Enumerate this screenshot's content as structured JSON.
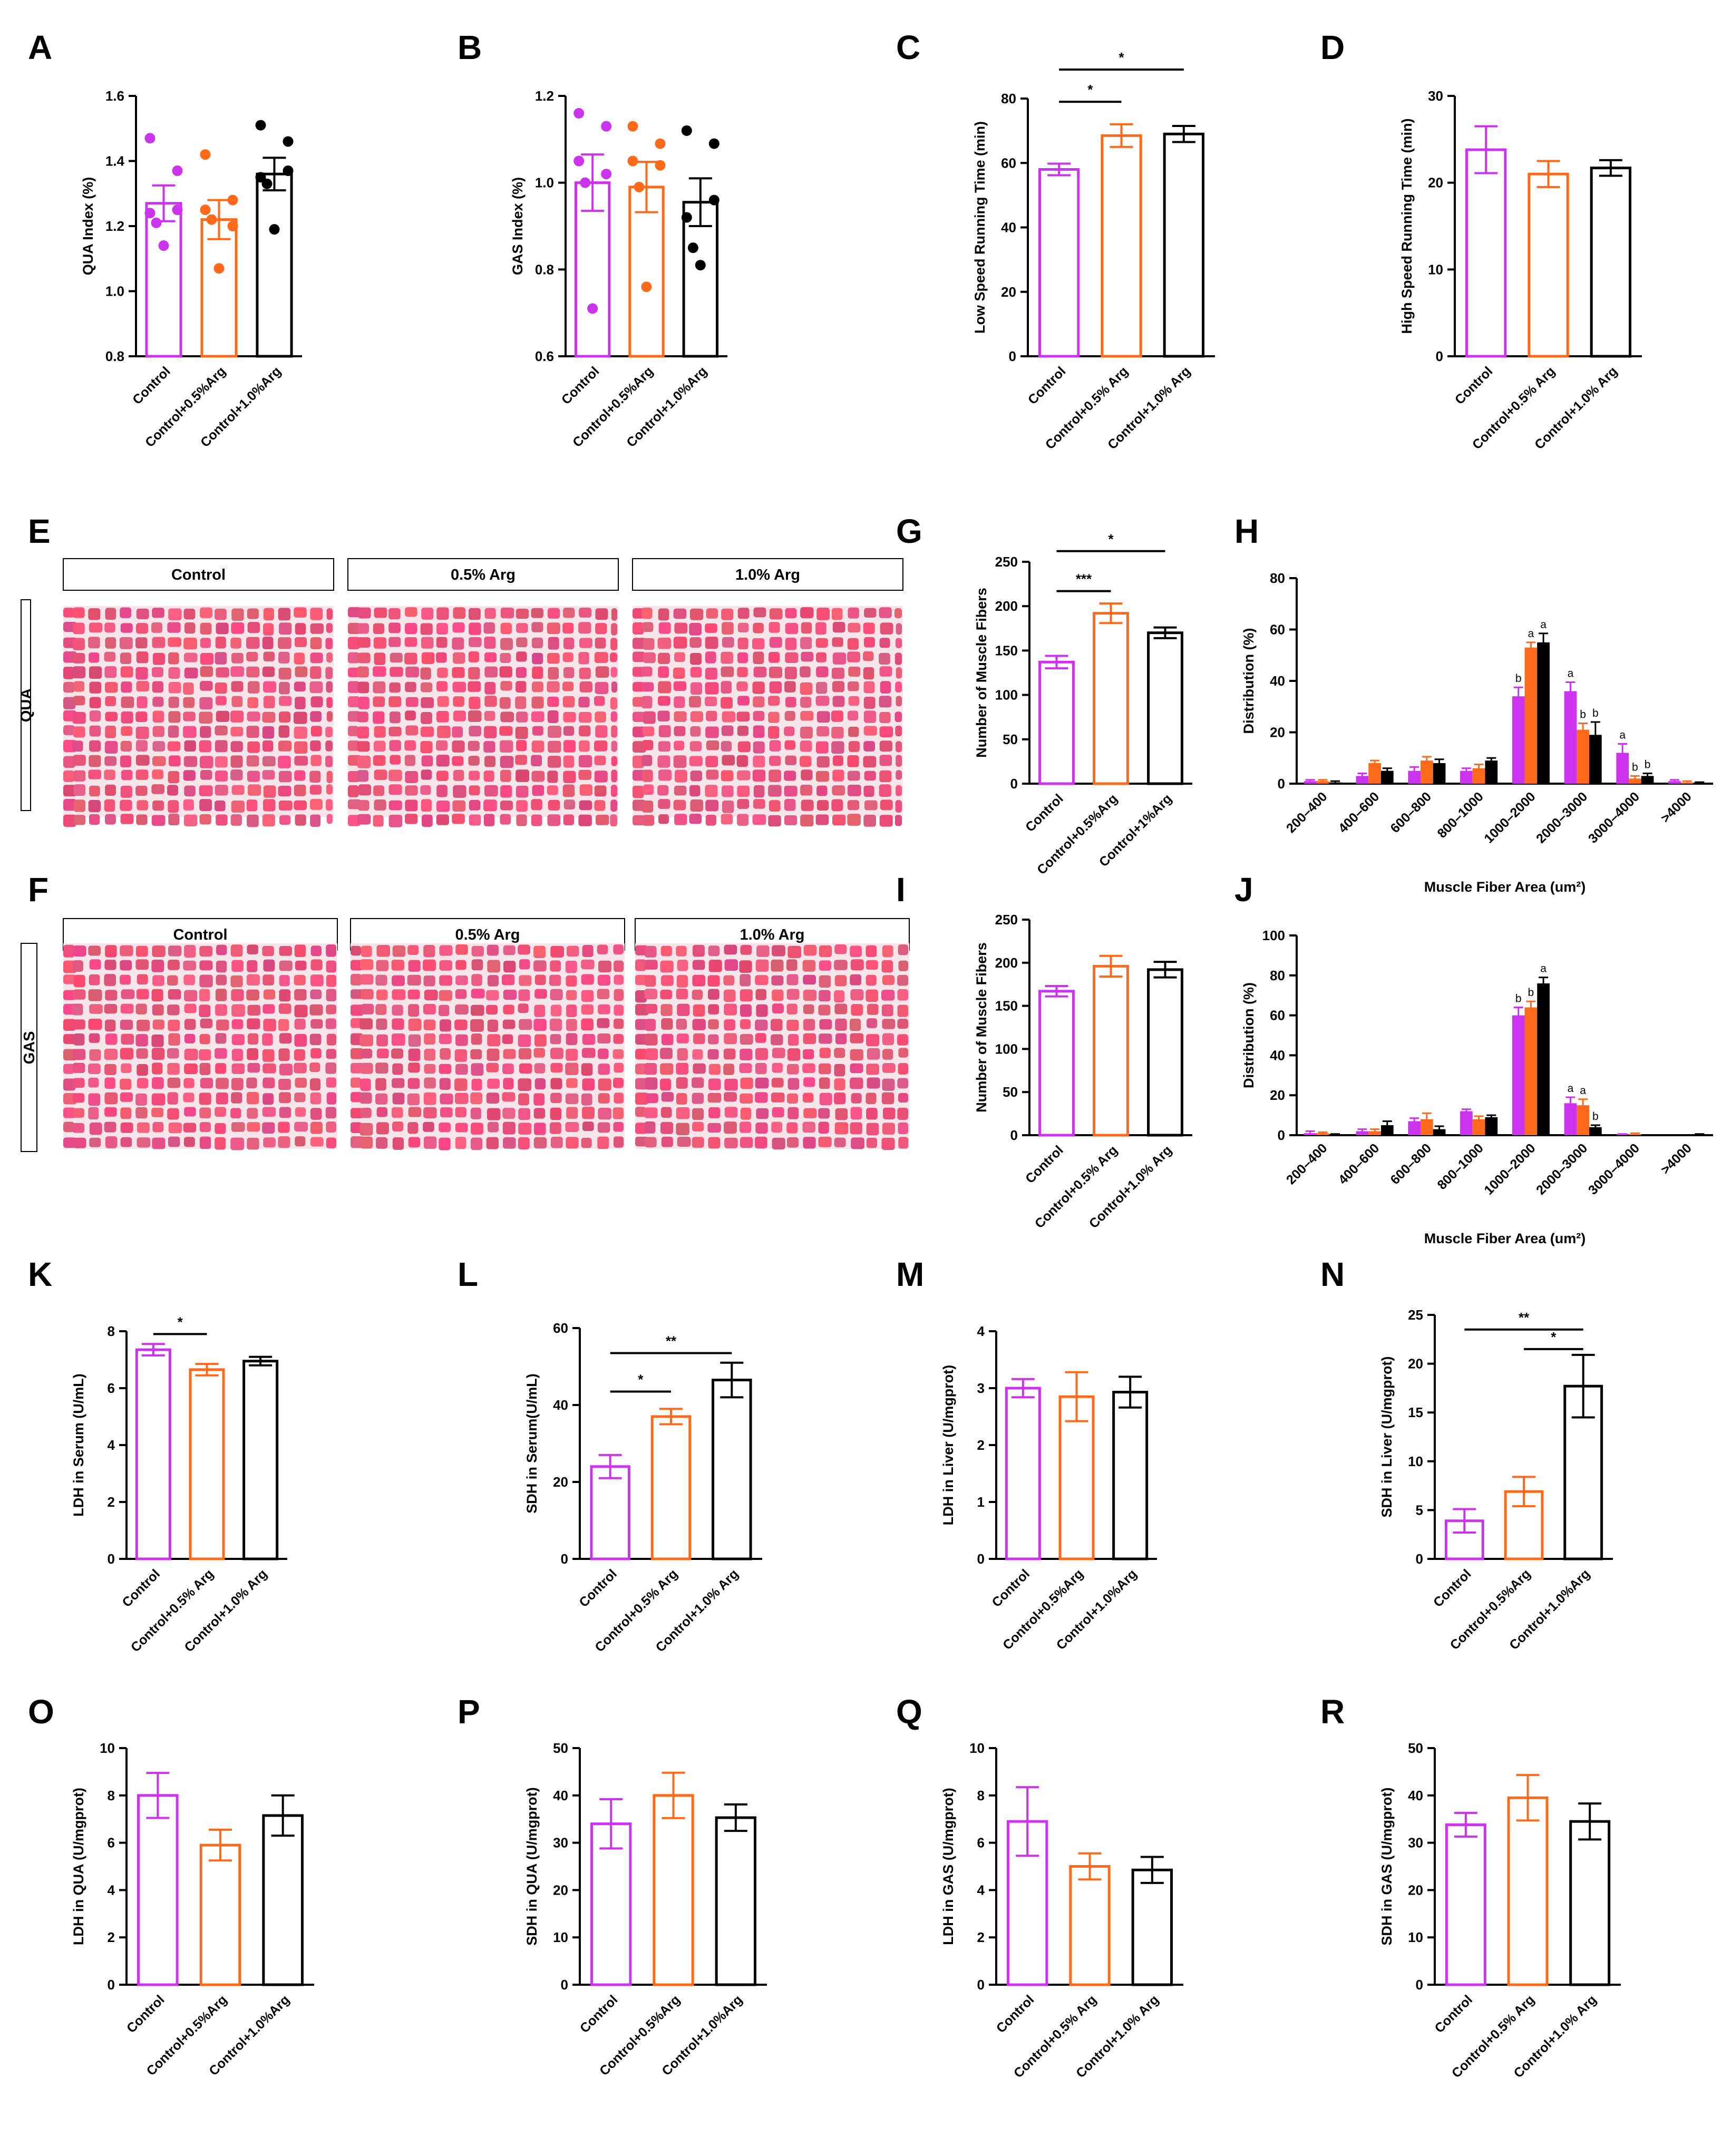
{
  "colors": {
    "control": "#cc33ee",
    "arg05": "#ff6a1a",
    "arg10": "#000000",
    "tissue": "#e04a78",
    "gap": "#f6e6ea"
  },
  "chart_data": [
    {
      "id": "A",
      "type": "bar",
      "panel": "A",
      "ylabel": "QUA Index (%)",
      "ylim": [
        0.8,
        1.6
      ],
      "yticks": [
        "0.8",
        "1.0",
        "1.2",
        "1.4",
        "1.6"
      ],
      "categories": [
        "Control",
        "Control+0.5%Arg",
        "Control+1.0%Arg"
      ],
      "values": [
        1.27,
        1.22,
        1.36
      ],
      "errors": [
        0.055,
        0.06,
        0.05
      ],
      "points": [
        [
          1.47,
          1.37,
          1.24,
          1.25,
          1.21,
          1.14
        ],
        [
          1.42,
          1.28,
          1.25,
          1.2,
          1.22,
          1.07
        ],
        [
          1.51,
          1.46,
          1.35,
          1.37,
          1.33,
          1.19
        ]
      ],
      "sig": []
    },
    {
      "id": "B",
      "type": "bar",
      "panel": "B",
      "ylabel": "GAS Index (%)",
      "ylim": [
        0.6,
        1.2
      ],
      "yticks": [
        "0.6",
        "0.8",
        "1.0",
        "1.2"
      ],
      "categories": [
        "Control",
        "Control+0.5%Arg",
        "Control+1.0%Arg"
      ],
      "values": [
        1.0,
        0.99,
        0.955
      ],
      "errors": [
        0.065,
        0.058,
        0.055
      ],
      "points": [
        [
          1.16,
          1.13,
          1.05,
          1.02,
          1.0,
          0.71
        ],
        [
          1.13,
          1.09,
          1.05,
          1.04,
          0.99,
          0.76
        ],
        [
          1.12,
          1.09,
          0.92,
          0.96,
          0.85,
          0.81
        ]
      ],
      "sig": []
    },
    {
      "id": "C",
      "type": "bar",
      "panel": "C",
      "ylabel": "Low Speed Running Time (min)",
      "ylim": [
        0,
        80
      ],
      "yticks": [
        "0",
        "20",
        "40",
        "60",
        "80"
      ],
      "categories": [
        "Control",
        "Control+0.5% Arg",
        "Control+1.0% Arg"
      ],
      "values": [
        58,
        68.5,
        69
      ],
      "errors": [
        1.8,
        3.5,
        2.5
      ],
      "sig": [
        {
          "from": 0,
          "to": 1,
          "label": "*",
          "y": 79
        },
        {
          "from": 0,
          "to": 2,
          "label": "*",
          "y": 89
        }
      ]
    },
    {
      "id": "D",
      "type": "bar",
      "panel": "D",
      "ylabel": "High Speed Running Time (min)",
      "ylim": [
        0,
        30
      ],
      "yticks": [
        "0",
        "10",
        "20",
        "30"
      ],
      "categories": [
        "Control",
        "Control+0.5% Arg",
        "Control+1.0% Arg"
      ],
      "values": [
        23.8,
        21,
        21.7
      ],
      "errors": [
        2.7,
        1.5,
        0.9
      ],
      "sig": []
    },
    {
      "id": "G",
      "type": "bar",
      "panel": "G",
      "ylabel": "Number of Muscle Fibers",
      "ylim": [
        0,
        250
      ],
      "yticks": [
        "0",
        "50",
        "100",
        "150",
        "200",
        "250"
      ],
      "categories": [
        "Control",
        "Control+0.5%Arg",
        "Control+1%Arg"
      ],
      "values": [
        137,
        192,
        170
      ],
      "errors": [
        7,
        11,
        6
      ],
      "sig": [
        {
          "from": 0,
          "to": 1,
          "label": "***",
          "y": 217
        },
        {
          "from": 0,
          "to": 2,
          "label": "*",
          "y": 262
        }
      ]
    },
    {
      "id": "H",
      "type": "bar",
      "panel": "H",
      "ylabel": "Distribution (%)",
      "xlabel": "Muscle Fiber Area (um²)",
      "ylim": [
        0,
        80
      ],
      "yticks": [
        "0",
        "20",
        "40",
        "60",
        "80"
      ],
      "categories": [
        "200–400",
        "400–600",
        "600–800",
        "800–1000",
        "1000–2000",
        "2000–3000",
        "3000–4000",
        ">4000"
      ],
      "series": [
        {
          "name": "Control",
          "values": [
            1,
            3,
            5,
            5,
            34,
            36,
            12,
            1
          ],
          "errors": [
            0.5,
            1,
            1.5,
            1,
            3.5,
            3.5,
            3.5,
            0.5
          ]
        },
        {
          "name": "0.5% Arg",
          "values": [
            1,
            8,
            9,
            6,
            53,
            21,
            2,
            0.5
          ],
          "errors": [
            0.5,
            1,
            1.5,
            1.5,
            2,
            2.5,
            1,
            0.5
          ]
        },
        {
          "name": "1.0% Arg",
          "values": [
            0.5,
            5,
            8,
            9,
            55,
            19,
            3,
            0.3
          ],
          "errors": [
            0.5,
            1,
            1.5,
            1,
            3.5,
            5,
            1,
            0.3
          ]
        }
      ],
      "letters": [
        {
          "cat": 4,
          "labels": [
            "b",
            "a",
            "a"
          ]
        },
        {
          "cat": 5,
          "labels": [
            "a",
            "b",
            "b"
          ]
        },
        {
          "cat": 6,
          "labels": [
            "a",
            "b",
            "b"
          ]
        }
      ]
    },
    {
      "id": "I",
      "type": "bar",
      "panel": "I",
      "ylabel": "Number of Muscle Fibers",
      "ylim": [
        0,
        250
      ],
      "yticks": [
        "0",
        "50",
        "100",
        "150",
        "200",
        "250"
      ],
      "categories": [
        "Control",
        "Control+0.5% Arg",
        "Control+1.0% Arg"
      ],
      "values": [
        167,
        196,
        192
      ],
      "errors": [
        6,
        12,
        9
      ],
      "sig": []
    },
    {
      "id": "J",
      "type": "bar",
      "panel": "J",
      "ylabel": "Distribution (%)",
      "xlabel": "Muscle Fiber Area (um²)",
      "ylim": [
        0,
        100
      ],
      "yticks": [
        "0",
        "20",
        "40",
        "60",
        "80",
        "100"
      ],
      "categories": [
        "200–400",
        "400–600",
        "600–800",
        "800–1000",
        "1000–2000",
        "2000–3000",
        "3000–4000",
        ">4000"
      ],
      "series": [
        {
          "name": "Control",
          "values": [
            1,
            2,
            7,
            12,
            60,
            16,
            0.3,
            0
          ],
          "errors": [
            1,
            1,
            1.5,
            1,
            4,
            3,
            0.3,
            0
          ]
        },
        {
          "name": "0.5% Arg",
          "values": [
            1,
            2,
            8,
            8,
            64,
            15,
            0.5,
            0
          ],
          "errors": [
            0.5,
            1,
            3,
            1.5,
            3,
            3,
            0.5,
            0
          ]
        },
        {
          "name": "1.0% Arg",
          "values": [
            0.3,
            5,
            3,
            9,
            76,
            4,
            0,
            0.3
          ],
          "errors": [
            0.3,
            2,
            1.5,
            1,
            3,
            1,
            0,
            0.3
          ]
        }
      ],
      "letters": [
        {
          "cat": 4,
          "labels": [
            "b",
            "b",
            "a"
          ]
        },
        {
          "cat": 5,
          "labels": [
            "a",
            "a",
            "b"
          ]
        }
      ]
    },
    {
      "id": "K",
      "type": "bar",
      "panel": "K",
      "ylabel": "LDH in Serum  (U/mL)",
      "ylim": [
        0,
        8
      ],
      "yticks": [
        "0",
        "2",
        "4",
        "6",
        "8"
      ],
      "categories": [
        "Control",
        "Control+0.5% Arg",
        "Control+1.0% Arg"
      ],
      "values": [
        7.35,
        6.65,
        6.95
      ],
      "errors": [
        0.2,
        0.2,
        0.15
      ],
      "sig": [
        {
          "from": 0,
          "to": 1,
          "label": "*",
          "y": 7.9
        }
      ]
    },
    {
      "id": "L",
      "type": "bar",
      "panel": "L",
      "ylabel": "SDH in Serum(U/mL)",
      "ylim": [
        0,
        60
      ],
      "yticks": [
        "0",
        "20",
        "40",
        "60"
      ],
      "categories": [
        "Control",
        "Control+0.5% Arg",
        "Control+1.0% Arg"
      ],
      "values": [
        24,
        37,
        46.5
      ],
      "errors": [
        3,
        2,
        4.5
      ],
      "sig": [
        {
          "from": 0,
          "to": 1,
          "label": "*",
          "y": 43.5
        },
        {
          "from": 0,
          "to": 2,
          "label": "**",
          "y": 53.5
        }
      ]
    },
    {
      "id": "M",
      "type": "bar",
      "panel": "M",
      "ylabel": "LDH in Liver (U/mgprot)",
      "ylim": [
        0,
        4
      ],
      "yticks": [
        "0",
        "1",
        "2",
        "3",
        "4"
      ],
      "categories": [
        "Control",
        "Control+0.5%Arg",
        "Control+1.0%Arg"
      ],
      "values": [
        3.0,
        2.85,
        2.93
      ],
      "errors": [
        0.16,
        0.43,
        0.27
      ],
      "sig": []
    },
    {
      "id": "N",
      "type": "bar",
      "panel": "N",
      "ylabel": "SDH in Liver (U/mgprot)",
      "ylim": [
        0,
        25
      ],
      "yticks": [
        "0",
        "5",
        "10",
        "15",
        "20",
        "25"
      ],
      "categories": [
        "Control",
        "Control+0.5%Arg",
        "Control+1.0%Arg"
      ],
      "values": [
        3.9,
        6.9,
        17.7
      ],
      "errors": [
        1.2,
        1.5,
        3.2
      ],
      "sig": [
        {
          "from": 1,
          "to": 2,
          "label": "*",
          "y": 21.5
        },
        {
          "from": 0,
          "to": 2,
          "label": "**",
          "y": 23.5
        }
      ]
    },
    {
      "id": "O",
      "type": "bar",
      "panel": "O",
      "ylabel": "LDH in QUA (U/mgprot)",
      "ylim": [
        0,
        10
      ],
      "yticks": [
        "0",
        "2",
        "4",
        "6",
        "8",
        "10"
      ],
      "categories": [
        "Control",
        "Control+0.5%Arg",
        "Control+1.0%Arg"
      ],
      "values": [
        8.0,
        5.9,
        7.15
      ],
      "errors": [
        0.95,
        0.65,
        0.85
      ],
      "sig": []
    },
    {
      "id": "P",
      "type": "bar",
      "panel": "P",
      "ylabel": "SDH in QUA (U/mgprot)",
      "ylim": [
        0,
        50
      ],
      "yticks": [
        "0",
        "10",
        "20",
        "30",
        "40",
        "50"
      ],
      "categories": [
        "Control",
        "Control+0.5%Arg",
        "Control+1.0%Arg"
      ],
      "values": [
        34,
        40,
        35.3
      ],
      "errors": [
        5.2,
        4.8,
        2.8
      ],
      "sig": []
    },
    {
      "id": "Q",
      "type": "bar",
      "panel": "Q",
      "ylabel": "LDH in GAS (U/mgprot)",
      "ylim": [
        0,
        10
      ],
      "yticks": [
        "0",
        "2",
        "4",
        "6",
        "8",
        "10"
      ],
      "categories": [
        "Control",
        "Control+0.5% Arg",
        "Control+1.0% Arg"
      ],
      "values": [
        6.9,
        5.0,
        4.85
      ],
      "errors": [
        1.45,
        0.55,
        0.55
      ],
      "sig": []
    },
    {
      "id": "R",
      "type": "bar",
      "panel": "R",
      "ylabel": "SDH in GAS (U/mgprot)",
      "ylim": [
        0,
        50
      ],
      "yticks": [
        "0",
        "10",
        "20",
        "30",
        "40",
        "50"
      ],
      "categories": [
        "Control",
        "Control+0.5% Arg",
        "Control+1.0% Arg"
      ],
      "values": [
        33.8,
        39.5,
        34.5
      ],
      "errors": [
        2.5,
        4.8,
        3.8
      ],
      "sig": []
    }
  ],
  "micrographs": {
    "E": {
      "panel": "E",
      "row_label": "QUA",
      "titles": [
        "Control",
        "0.5% Arg",
        "1.0% Arg"
      ]
    },
    "F": {
      "panel": "F",
      "row_label": "GAS",
      "titles": [
        "Control",
        "0.5% Arg",
        "1.0% Arg"
      ]
    }
  }
}
